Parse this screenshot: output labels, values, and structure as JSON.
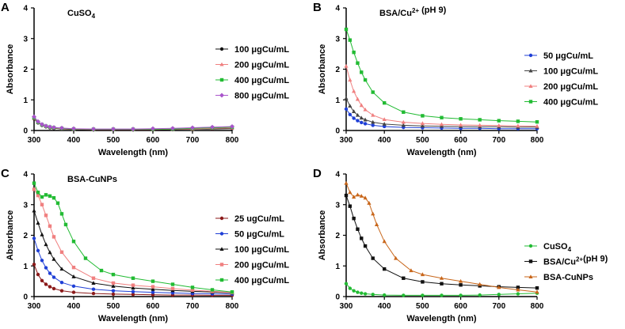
{
  "chart_data": [
    {
      "type": "line",
      "panel": "A",
      "title": "CuSO₄",
      "title_main": "CuSO",
      "title_sub": "4",
      "title_sup": "",
      "title_tail": "",
      "xlabel": "Wavelength (nm)",
      "ylabel": "Absorbance",
      "xlim": [
        300,
        800
      ],
      "ylim": [
        0,
        4
      ],
      "xticks": [
        300,
        400,
        500,
        600,
        700,
        800
      ],
      "yticks": [
        0,
        1,
        2,
        3,
        4
      ],
      "legend_position": "right",
      "series": [
        {
          "name": "100 μgCu/mL",
          "color": "#111111",
          "marker": "circle",
          "x": [
            300,
            310,
            320,
            330,
            340,
            350,
            370,
            400,
            450,
            500,
            550,
            600,
            650,
            700,
            750,
            800
          ],
          "y": [
            0.38,
            0.25,
            0.17,
            0.12,
            0.09,
            0.07,
            0.05,
            0.03,
            0.02,
            0.02,
            0.02,
            0.02,
            0.03,
            0.04,
            0.05,
            0.06
          ]
        },
        {
          "name": "200 μgCu/mL",
          "color": "#f08080",
          "marker": "triangle",
          "x": [
            300,
            310,
            320,
            330,
            340,
            350,
            370,
            400,
            450,
            500,
            550,
            600,
            650,
            700,
            750,
            800
          ],
          "y": [
            0.4,
            0.26,
            0.18,
            0.13,
            0.1,
            0.08,
            0.06,
            0.04,
            0.03,
            0.03,
            0.03,
            0.03,
            0.04,
            0.05,
            0.07,
            0.08
          ]
        },
        {
          "name": "400 μgCu/mL",
          "color": "#22bb33",
          "marker": "square",
          "x": [
            300,
            310,
            320,
            330,
            340,
            350,
            370,
            400,
            450,
            500,
            550,
            600,
            650,
            700,
            750,
            800
          ],
          "y": [
            0.42,
            0.27,
            0.19,
            0.14,
            0.11,
            0.09,
            0.07,
            0.05,
            0.04,
            0.04,
            0.04,
            0.04,
            0.05,
            0.07,
            0.09,
            0.11
          ]
        },
        {
          "name": "800 μgCu/mL",
          "color": "#aa55cc",
          "marker": "diamond",
          "x": [
            300,
            310,
            320,
            330,
            340,
            350,
            370,
            400,
            450,
            500,
            550,
            600,
            650,
            700,
            750,
            800
          ],
          "y": [
            0.45,
            0.29,
            0.2,
            0.15,
            0.12,
            0.1,
            0.08,
            0.06,
            0.05,
            0.05,
            0.05,
            0.06,
            0.07,
            0.09,
            0.11,
            0.13
          ]
        }
      ]
    },
    {
      "type": "line",
      "panel": "B",
      "title": "BSA/Cu²⁺ (pH 9)",
      "title_main": "BSA/Cu",
      "title_sub": "",
      "title_sup": "2+",
      "title_tail": " (pH 9)",
      "xlabel": "Wavelength (nm)",
      "ylabel": "Absorbance",
      "xlim": [
        300,
        800
      ],
      "ylim": [
        0,
        4
      ],
      "xticks": [
        300,
        400,
        500,
        600,
        700,
        800
      ],
      "yticks": [
        0,
        1,
        2,
        3,
        4
      ],
      "legend_position": "right",
      "series": [
        {
          "name": "50 μgCu/mL",
          "color": "#1f3fd6",
          "marker": "circle",
          "x": [
            300,
            310,
            320,
            330,
            340,
            350,
            370,
            400,
            450,
            500,
            550,
            600,
            650,
            700,
            750,
            800
          ],
          "y": [
            0.7,
            0.52,
            0.4,
            0.32,
            0.26,
            0.22,
            0.17,
            0.13,
            0.1,
            0.09,
            0.08,
            0.07,
            0.07,
            0.06,
            0.06,
            0.06
          ]
        },
        {
          "name": "100 μgCu/mL",
          "color": "#444444",
          "marker": "triangle",
          "x": [
            300,
            310,
            320,
            330,
            340,
            350,
            370,
            400,
            450,
            500,
            550,
            600,
            650,
            700,
            750,
            800
          ],
          "y": [
            1.05,
            0.8,
            0.62,
            0.5,
            0.41,
            0.35,
            0.27,
            0.21,
            0.17,
            0.15,
            0.14,
            0.13,
            0.12,
            0.12,
            0.11,
            0.11
          ]
        },
        {
          "name": "200 μgCu/mL",
          "color": "#f08080",
          "marker": "triangle",
          "x": [
            300,
            310,
            320,
            330,
            340,
            350,
            370,
            400,
            450,
            500,
            550,
            600,
            650,
            700,
            750,
            800
          ],
          "y": [
            2.1,
            1.65,
            1.28,
            1.02,
            0.82,
            0.68,
            0.5,
            0.36,
            0.27,
            0.23,
            0.2,
            0.18,
            0.17,
            0.16,
            0.15,
            0.14
          ]
        },
        {
          "name": "400 μgCu/mL",
          "color": "#22bb33",
          "marker": "square",
          "x": [
            300,
            310,
            320,
            330,
            340,
            350,
            370,
            400,
            450,
            500,
            550,
            600,
            650,
            700,
            750,
            800
          ],
          "y": [
            3.3,
            2.95,
            2.55,
            2.2,
            1.9,
            1.65,
            1.25,
            0.9,
            0.6,
            0.48,
            0.42,
            0.38,
            0.35,
            0.32,
            0.3,
            0.28
          ]
        }
      ]
    },
    {
      "type": "line",
      "panel": "C",
      "title": "BSA-CuNPs",
      "title_main": "BSA-CuNPs",
      "title_sub": "",
      "title_sup": "",
      "title_tail": "",
      "xlabel": "Wavelength (nm)",
      "ylabel": "Absorbance",
      "xlim": [
        300,
        800
      ],
      "ylim": [
        0,
        4
      ],
      "xticks": [
        300,
        400,
        500,
        600,
        700,
        800
      ],
      "yticks": [
        0,
        1,
        2,
        3,
        4
      ],
      "legend_position": "right",
      "series": [
        {
          "name": "25 ugCu/mL",
          "color": "#8b1a1a",
          "marker": "circle",
          "x": [
            300,
            310,
            320,
            330,
            340,
            350,
            370,
            400,
            450,
            500,
            550,
            600,
            650,
            700,
            750,
            800
          ],
          "y": [
            1.05,
            0.72,
            0.52,
            0.4,
            0.32,
            0.26,
            0.19,
            0.14,
            0.1,
            0.08,
            0.07,
            0.06,
            0.05,
            0.05,
            0.04,
            0.04
          ]
        },
        {
          "name": "50 μgCu/mL",
          "color": "#1f3fd6",
          "marker": "circle",
          "x": [
            300,
            310,
            320,
            330,
            340,
            350,
            370,
            400,
            450,
            500,
            550,
            600,
            650,
            700,
            750,
            800
          ],
          "y": [
            1.9,
            1.5,
            1.18,
            0.94,
            0.76,
            0.63,
            0.46,
            0.34,
            0.24,
            0.19,
            0.16,
            0.14,
            0.12,
            0.1,
            0.09,
            0.08
          ]
        },
        {
          "name": "100 μgCu/mL",
          "color": "#111111",
          "marker": "triangle",
          "x": [
            300,
            310,
            320,
            330,
            340,
            350,
            370,
            400,
            450,
            500,
            550,
            600,
            650,
            700,
            750,
            800
          ],
          "y": [
            2.8,
            2.4,
            2.02,
            1.7,
            1.44,
            1.22,
            0.9,
            0.65,
            0.44,
            0.34,
            0.28,
            0.24,
            0.2,
            0.17,
            0.15,
            0.12
          ]
        },
        {
          "name": "200 μgCu/mL",
          "color": "#f08080",
          "marker": "square",
          "x": [
            300,
            310,
            320,
            330,
            340,
            350,
            370,
            400,
            450,
            500,
            550,
            600,
            650,
            700,
            750,
            800
          ],
          "y": [
            3.5,
            3.3,
            3.0,
            2.65,
            2.3,
            1.95,
            1.45,
            0.95,
            0.6,
            0.44,
            0.37,
            0.32,
            0.26,
            0.21,
            0.17,
            0.13
          ]
        },
        {
          "name": "400 μgCu/mL",
          "color": "#22bb33",
          "marker": "square",
          "x": [
            300,
            310,
            320,
            330,
            340,
            350,
            360,
            370,
            380,
            400,
            430,
            470,
            500,
            550,
            600,
            650,
            700,
            750,
            800
          ],
          "y": [
            3.7,
            3.4,
            3.25,
            3.32,
            3.28,
            3.22,
            3.05,
            2.7,
            2.35,
            1.8,
            1.25,
            0.85,
            0.72,
            0.6,
            0.5,
            0.4,
            0.3,
            0.22,
            0.15
          ]
        }
      ]
    },
    {
      "type": "line",
      "panel": "D",
      "title": "",
      "title_main": "",
      "title_sub": "",
      "title_sup": "",
      "title_tail": "",
      "xlabel": "Wavelength (nm)",
      "ylabel": "Absorbance",
      "xlim": [
        300,
        800
      ],
      "ylim": [
        0,
        4
      ],
      "xticks": [
        300,
        400,
        500,
        600,
        700,
        800
      ],
      "yticks": [
        0,
        1,
        2,
        3,
        4
      ],
      "legend_position": "right",
      "series": [
        {
          "name": "CuSO₄",
          "legend_main": "CuSO",
          "legend_sub": "4",
          "legend_sup": "",
          "legend_tail": "",
          "color": "#22bb33",
          "marker": "circle",
          "x": [
            300,
            310,
            320,
            330,
            340,
            350,
            370,
            400,
            450,
            500,
            550,
            600,
            650,
            700,
            750,
            800
          ],
          "y": [
            0.42,
            0.27,
            0.19,
            0.14,
            0.11,
            0.09,
            0.07,
            0.05,
            0.04,
            0.04,
            0.04,
            0.04,
            0.05,
            0.07,
            0.09,
            0.11
          ]
        },
        {
          "name": "BSA/Cu²⁺(pH 9)",
          "legend_main": "BSA/Cu",
          "legend_sub": "",
          "legend_sup": "2+",
          "legend_tail": "(pH 9)",
          "color": "#111111",
          "marker": "square",
          "x": [
            300,
            310,
            320,
            330,
            340,
            350,
            370,
            400,
            450,
            500,
            550,
            600,
            650,
            700,
            750,
            800
          ],
          "y": [
            3.3,
            2.95,
            2.55,
            2.2,
            1.9,
            1.65,
            1.25,
            0.9,
            0.6,
            0.48,
            0.42,
            0.38,
            0.35,
            0.32,
            0.3,
            0.28
          ]
        },
        {
          "name": "BSA-CuNPs",
          "legend_main": "BSA-CuNPs",
          "legend_sub": "",
          "legend_sup": "",
          "legend_tail": "",
          "color": "#c8661a",
          "marker": "triangle",
          "x": [
            300,
            310,
            320,
            330,
            340,
            350,
            360,
            370,
            380,
            400,
            430,
            470,
            500,
            550,
            600,
            650,
            700,
            750,
            800
          ],
          "y": [
            3.7,
            3.4,
            3.25,
            3.32,
            3.28,
            3.22,
            3.05,
            2.7,
            2.35,
            1.8,
            1.25,
            0.85,
            0.72,
            0.6,
            0.5,
            0.4,
            0.3,
            0.22,
            0.15
          ]
        }
      ]
    }
  ]
}
